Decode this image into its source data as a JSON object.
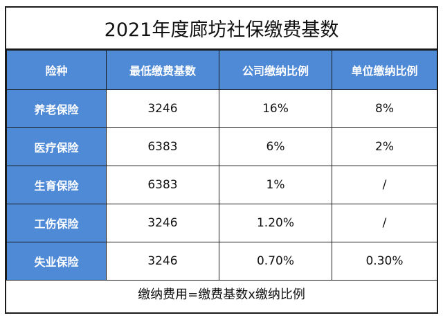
{
  "title": "2021年度廊坊社保缴费基数",
  "headers": [
    "险种",
    "最低缴费基数",
    "公司缴纳比例",
    "单位缴纳比例"
  ],
  "rows": [
    {
      "name": "养老保险",
      "base": "3246",
      "company": "16%",
      "unit": "8%"
    },
    {
      "name": "医疗保险",
      "base": "6383",
      "company": "6%",
      "unit": "2%"
    },
    {
      "name": "生育保险",
      "base": "6383",
      "company": "1%",
      "unit": "/"
    },
    {
      "name": "工伤保险",
      "base": "3246",
      "company": "1.20%",
      "unit": "/"
    },
    {
      "name": "失业保险",
      "base": "3246",
      "company": "0.70%",
      "unit": "0.30%"
    }
  ],
  "footer": "缴纳费用=缴费基数x缴纳比例",
  "colors": {
    "header_bg": "#4f8ad6",
    "header_text": "#ffffff",
    "border": "#1a1a1a"
  }
}
